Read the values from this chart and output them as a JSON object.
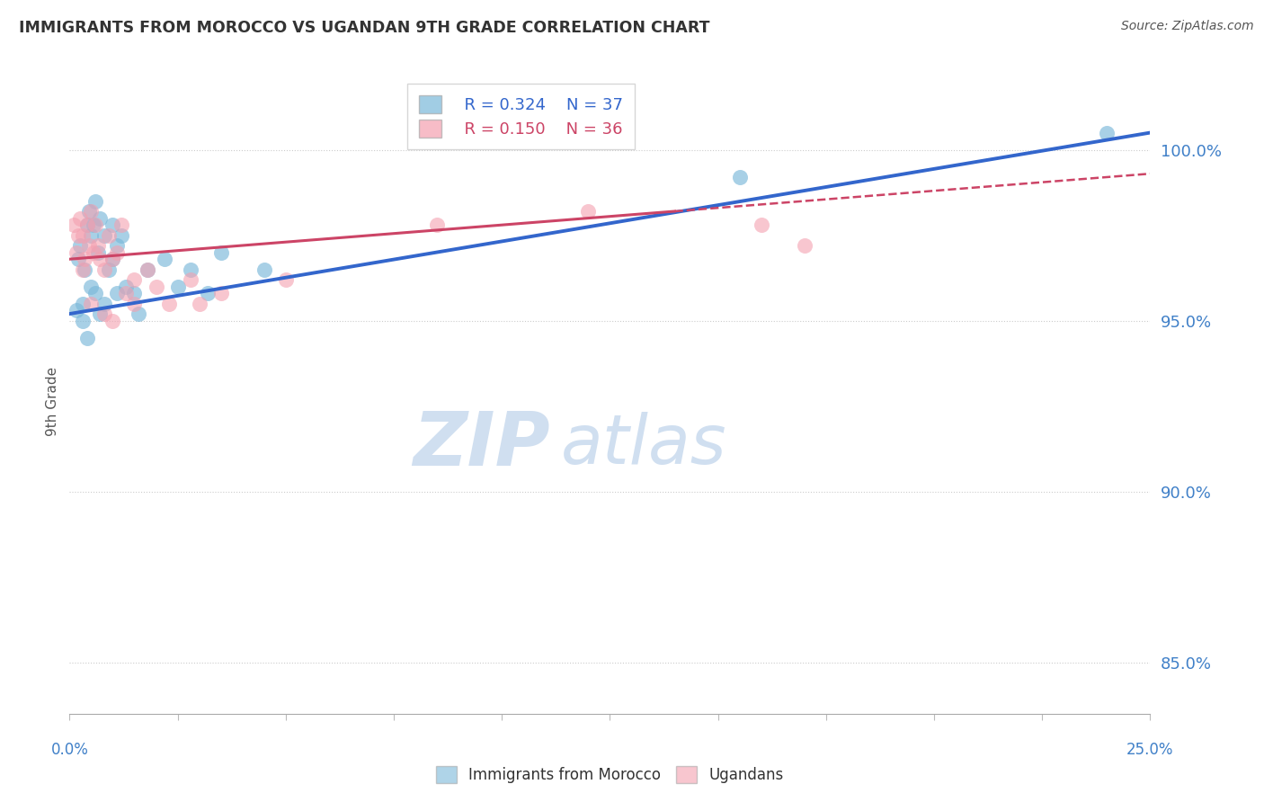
{
  "title": "IMMIGRANTS FROM MOROCCO VS UGANDAN 9TH GRADE CORRELATION CHART",
  "source": "Source: ZipAtlas.com",
  "ylabel": "9th Grade",
  "yticks": [
    85.0,
    90.0,
    95.0,
    100.0
  ],
  "ytick_labels": [
    "85.0%",
    "90.0%",
    "95.0%",
    "100.0%"
  ],
  "xlim": [
    0.0,
    25.0
  ],
  "ylim": [
    83.5,
    101.8
  ],
  "legend_blue_r": "R = 0.324",
  "legend_blue_n": "N = 37",
  "legend_pink_r": "R = 0.150",
  "legend_pink_n": "N = 36",
  "blue_color": "#7ab8d9",
  "pink_color": "#f4a0b0",
  "blue_line_color": "#3366cc",
  "pink_line_color": "#cc4466",
  "title_color": "#333333",
  "axis_label_color": "#4080c8",
  "watermark_color": "#d0dff0",
  "blue_scatter_x": [
    0.15,
    0.2,
    0.25,
    0.3,
    0.35,
    0.4,
    0.45,
    0.5,
    0.5,
    0.55,
    0.6,
    0.65,
    0.7,
    0.8,
    0.9,
    1.0,
    1.0,
    1.1,
    1.2,
    1.3,
    1.5,
    1.8,
    2.2,
    2.5,
    2.8,
    3.2,
    3.5,
    4.5,
    0.3,
    0.4,
    0.6,
    0.7,
    0.8,
    1.1,
    1.6,
    15.5,
    24.0
  ],
  "blue_scatter_y": [
    95.3,
    96.8,
    97.2,
    95.5,
    96.5,
    97.8,
    98.2,
    97.5,
    96.0,
    97.8,
    98.5,
    97.0,
    98.0,
    97.5,
    96.5,
    96.8,
    97.8,
    97.2,
    97.5,
    96.0,
    95.8,
    96.5,
    96.8,
    96.0,
    96.5,
    95.8,
    97.0,
    96.5,
    95.0,
    94.5,
    95.8,
    95.2,
    95.5,
    95.8,
    95.2,
    99.2,
    100.5
  ],
  "pink_scatter_x": [
    0.1,
    0.15,
    0.2,
    0.25,
    0.3,
    0.35,
    0.4,
    0.45,
    0.5,
    0.55,
    0.6,
    0.65,
    0.7,
    0.8,
    0.9,
    1.0,
    1.1,
    1.2,
    1.3,
    1.5,
    1.8,
    2.0,
    2.3,
    2.8,
    3.5,
    0.3,
    0.5,
    0.8,
    1.0,
    1.5,
    3.0,
    5.0,
    8.5,
    12.0,
    16.0,
    17.0
  ],
  "pink_scatter_y": [
    97.8,
    97.0,
    97.5,
    98.0,
    97.5,
    96.8,
    97.8,
    97.2,
    98.2,
    97.0,
    97.8,
    97.2,
    96.8,
    96.5,
    97.5,
    96.8,
    97.0,
    97.8,
    95.8,
    96.2,
    96.5,
    96.0,
    95.5,
    96.2,
    95.8,
    96.5,
    95.5,
    95.2,
    95.0,
    95.5,
    95.5,
    96.2,
    97.8,
    98.2,
    97.8,
    97.2
  ],
  "blue_trend": [
    95.2,
    100.5
  ],
  "pink_trend_solid": [
    96.8,
    98.2
  ],
  "pink_solid_end_x": 14.0,
  "pink_trend_dashed": [
    98.2,
    99.3
  ]
}
